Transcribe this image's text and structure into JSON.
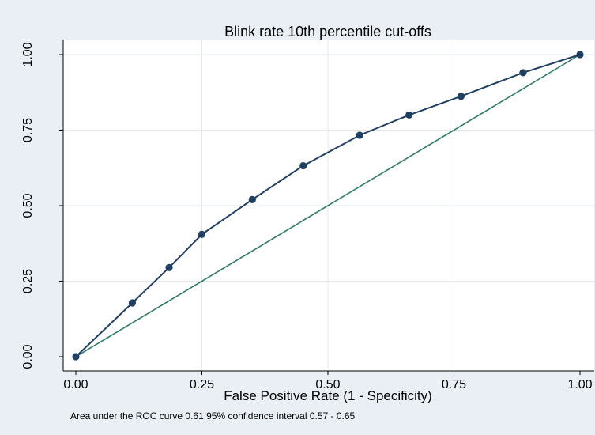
{
  "chart_data": {
    "type": "line",
    "title": "Blink rate 10th percentile cut-offs",
    "xlabel": "False Positive Rate (1 - Specificity)",
    "ylabel": "",
    "xlim": [
      0,
      1
    ],
    "ylim": [
      0,
      1
    ],
    "xticks": [
      "0.00",
      "0.25",
      "0.50",
      "0.75",
      "1.00"
    ],
    "yticks": [
      "0.00",
      "0.25",
      "0.50",
      "0.75",
      "1.00"
    ],
    "grid": true,
    "series": [
      {
        "color": "#1f3f63",
        "markers": true,
        "x": [
          0.0,
          0.112,
          0.185,
          0.25,
          0.35,
          0.451,
          0.563,
          0.661,
          0.764,
          0.887,
          1.0
        ],
        "y": [
          0.0,
          0.178,
          0.295,
          0.405,
          0.52,
          0.632,
          0.733,
          0.8,
          0.862,
          0.94,
          1.0
        ]
      },
      {
        "color": "#2e7a6a",
        "markers": false,
        "x": [
          0,
          1
        ],
        "y": [
          0,
          1
        ]
      }
    ],
    "note": "Area under the ROC curve 0.61 95% confidence interval 0.57 - 0.65"
  }
}
